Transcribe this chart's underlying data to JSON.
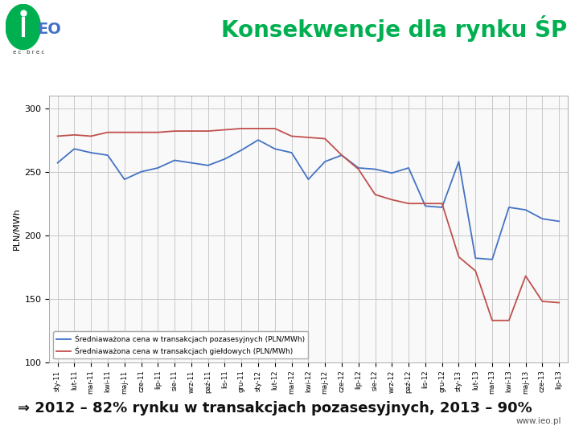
{
  "title": "Konsekwencje dla rynku ŚP",
  "ylabel": "PLN/MWh",
  "ylim": [
    100,
    310
  ],
  "yticks": [
    100,
    150,
    200,
    250,
    300
  ],
  "x_labels": [
    "sty-11",
    "lut-11",
    "mar-11",
    "kwi-11",
    "maj-11",
    "cze-11",
    "lip-11",
    "sie-11",
    "wrz-11",
    "paź-11",
    "lis-11",
    "gru-11",
    "sty-12",
    "lut-12",
    "mar-12",
    "kwi-12",
    "maj-12",
    "cze-12",
    "lip-12",
    "sie-12",
    "wrz-12",
    "paź-12",
    "lis-12",
    "gru-12",
    "sty-13",
    "lut-13",
    "mar-13",
    "kwi-13",
    "maj-13",
    "cze-13",
    "lip-13"
  ],
  "blue_line": [
    257,
    268,
    265,
    263,
    244,
    250,
    253,
    259,
    257,
    255,
    260,
    267,
    275,
    268,
    265,
    244,
    258,
    263,
    253,
    252,
    249,
    253,
    223,
    222,
    258,
    182,
    181,
    222,
    220,
    213,
    211
  ],
  "red_line": [
    278,
    279,
    278,
    281,
    281,
    281,
    281,
    282,
    282,
    282,
    283,
    284,
    284,
    284,
    278,
    277,
    276,
    263,
    252,
    232,
    228,
    225,
    225,
    225,
    183,
    172,
    133,
    133,
    168,
    148,
    147
  ],
  "blue_color": "#4472C4",
  "red_color": "#C0504D",
  "blue_label": "Średniaważona cena w transakcjach pozasesyjnych (PLN/MWh)",
  "red_label": "Średniaważona cena w transakcjach giełdowych (PLN/MWh)",
  "footer_text": "⇒ 2012 – 82% rynku w transakcjach pozasesyjnych, 2013 – 90%",
  "website": "www.ieo.pl",
  "grid_color": "#c8c8c8",
  "title_color": "#00b050",
  "title_fontsize": 20,
  "footer_fontsize": 13,
  "background_color": "#ffffff"
}
